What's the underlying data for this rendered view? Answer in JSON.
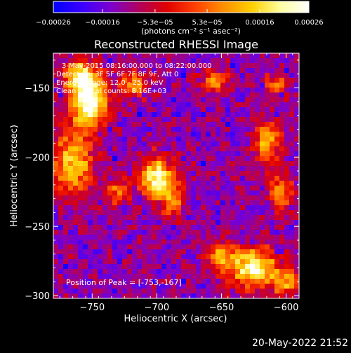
{
  "chart_data": {
    "type": "heatmap",
    "title": "Reconstructed RHESSI Image",
    "xlabel": "Heliocentric X (arcsec)",
    "ylabel": "Heliocentric Y (arcsec)",
    "xlim": [
      -780,
      -590
    ],
    "ylim": [
      -302,
      -125
    ],
    "xticks": [
      {
        "value": -750,
        "label": "−750"
      },
      {
        "value": -700,
        "label": "−700"
      },
      {
        "value": -650,
        "label": "−650"
      },
      {
        "value": -600,
        "label": "−600"
      }
    ],
    "yticks": [
      {
        "value": -150,
        "label": "−150"
      },
      {
        "value": -200,
        "label": "−200"
      },
      {
        "value": -250,
        "label": "−250"
      },
      {
        "value": -300,
        "label": "−300"
      }
    ],
    "colorbar": {
      "range": [
        -0.00026,
        0.00026
      ],
      "unit_label": "(photons cm⁻² s⁻¹ asec⁻²)",
      "ticks": [
        {
          "value": -0.00026,
          "label": "−0.00026"
        },
        {
          "value": -0.00016,
          "label": "−0.00016"
        },
        {
          "value": -5.3e-05,
          "label": "−5.3e−05"
        },
        {
          "value": 5.3e-05,
          "label": "5.3e−05"
        },
        {
          "value": 0.00016,
          "label": "0.00016"
        },
        {
          "value": 0.00026,
          "label": "0.00026"
        }
      ],
      "colormap": [
        "#0000ff",
        "#3a00ff",
        "#7a00d0",
        "#b00060",
        "#e00000",
        "#ff4000",
        "#ff9000",
        "#ffd000",
        "#ffffa0",
        "#ffffff"
      ]
    },
    "annotations": [
      "3-May-2015 08:16:00.000 to 08:22:00.000",
      "Detectors: 3F 5F 6F 7F 8F 9F, Att 0",
      "Energy Range: 12.0 - 25.0 keV",
      "Clean    Total counts: 8.16E+03"
    ],
    "peak_label": "Position of Peak = [-753,-167]",
    "peak": {
      "x": -753,
      "y": -167
    },
    "sources": [
      {
        "x": -752,
        "y": -160,
        "sx": 9,
        "sy": 13,
        "amp": 1.0
      },
      {
        "x": -760,
        "y": -142,
        "sx": 8,
        "sy": 8,
        "amp": 0.7
      },
      {
        "x": -765,
        "y": -205,
        "sx": 11,
        "sy": 16,
        "amp": 0.65
      },
      {
        "x": -730,
        "y": -225,
        "sx": 6,
        "sy": 6,
        "amp": 0.45
      },
      {
        "x": -718,
        "y": -148,
        "sx": 8,
        "sy": 6,
        "amp": 0.55
      },
      {
        "x": -700,
        "y": -215,
        "sx": 9,
        "sy": 10,
        "amp": 0.85
      },
      {
        "x": -688,
        "y": -232,
        "sx": 6,
        "sy": 8,
        "amp": 0.5
      },
      {
        "x": -655,
        "y": -145,
        "sx": 7,
        "sy": 6,
        "amp": 0.5
      },
      {
        "x": -615,
        "y": -190,
        "sx": 7,
        "sy": 11,
        "amp": 0.6
      },
      {
        "x": -604,
        "y": -225,
        "sx": 6,
        "sy": 10,
        "amp": 0.5
      },
      {
        "x": -608,
        "y": -148,
        "sx": 6,
        "sy": 6,
        "amp": 0.4
      },
      {
        "x": -625,
        "y": -280,
        "sx": 12,
        "sy": 10,
        "amp": 0.85
      },
      {
        "x": -650,
        "y": -272,
        "sx": 8,
        "sy": 8,
        "amp": 0.5
      },
      {
        "x": -600,
        "y": -290,
        "sx": 7,
        "sy": 7,
        "amp": 0.55
      }
    ],
    "background_level": 0.18
  },
  "footer": {
    "date": "20-May-2022 21:52"
  }
}
